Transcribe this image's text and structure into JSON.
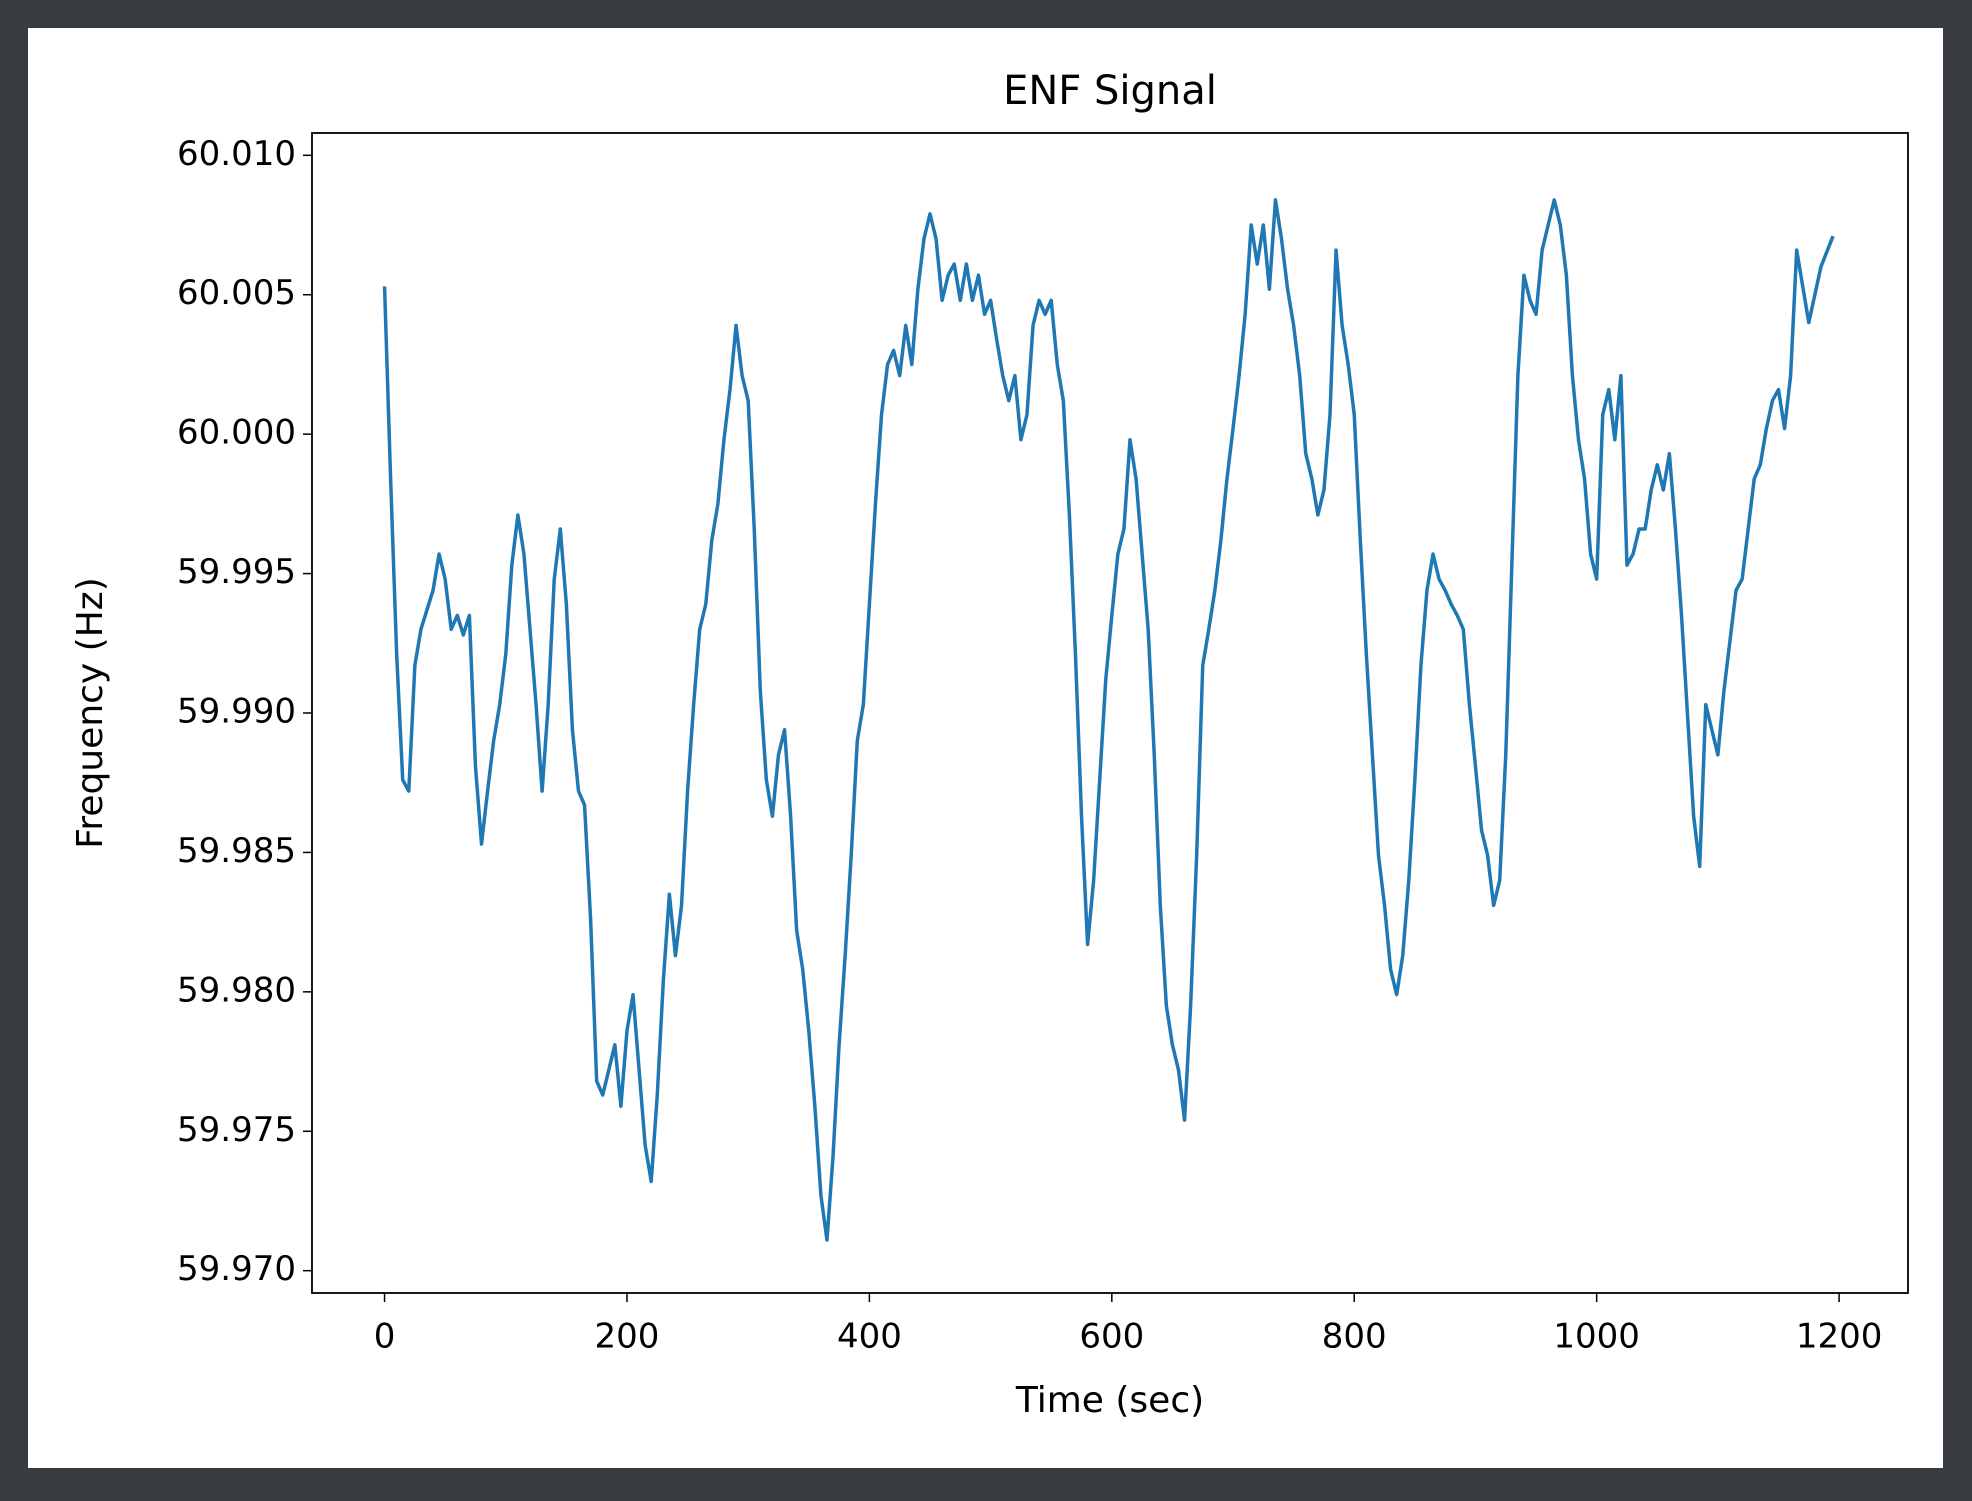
{
  "chart_data": {
    "type": "line",
    "title": "ENF Signal",
    "x_label": "Time (sec)",
    "y_label": "Frequency (Hz)",
    "x": [
      0,
      5,
      10,
      15,
      20,
      25,
      30,
      35,
      40,
      45,
      50,
      55,
      60,
      65,
      70,
      75,
      80,
      85,
      90,
      95,
      100,
      105,
      110,
      115,
      120,
      125,
      130,
      135,
      140,
      145,
      150,
      155,
      160,
      165,
      170,
      175,
      180,
      185,
      190,
      195,
      200,
      205,
      210,
      215,
      220,
      225,
      230,
      235,
      240,
      245,
      250,
      255,
      260,
      265,
      270,
      275,
      280,
      285,
      290,
      295,
      300,
      305,
      310,
      315,
      320,
      325,
      330,
      335,
      340,
      345,
      350,
      355,
      360,
      365,
      370,
      375,
      380,
      385,
      390,
      395,
      400,
      405,
      410,
      415,
      420,
      425,
      430,
      435,
      440,
      445,
      450,
      455,
      460,
      465,
      470,
      475,
      480,
      485,
      490,
      495,
      500,
      505,
      510,
      515,
      520,
      525,
      530,
      535,
      540,
      545,
      550,
      555,
      560,
      565,
      570,
      575,
      580,
      585,
      590,
      595,
      600,
      605,
      610,
      615,
      620,
      625,
      630,
      635,
      640,
      645,
      650,
      655,
      660,
      665,
      670,
      675,
      680,
      685,
      690,
      695,
      700,
      705,
      710,
      715,
      720,
      725,
      730,
      735,
      740,
      745,
      750,
      755,
      760,
      765,
      770,
      775,
      780,
      785,
      790,
      795,
      800,
      805,
      810,
      815,
      820,
      825,
      830,
      835,
      840,
      845,
      850,
      855,
      860,
      865,
      870,
      875,
      880,
      885,
      890,
      895,
      900,
      905,
      910,
      915,
      920,
      925,
      930,
      935,
      940,
      945,
      950,
      955,
      960,
      965,
      970,
      975,
      980,
      985,
      990,
      995,
      1000,
      1005,
      1010,
      1015,
      1020,
      1025,
      1030,
      1035,
      1040,
      1045,
      1050,
      1055,
      1060,
      1065,
      1070,
      1075,
      1080,
      1085,
      1090,
      1095,
      1100,
      1105,
      1110,
      1115,
      1120,
      1125,
      1130,
      1135,
      1140,
      1145,
      1150,
      1155,
      1160,
      1165,
      1175,
      1185,
      1195
    ],
    "series": [
      {
        "name": "ENF",
        "color": "#1f77b4",
        "values": [
          60.0053,
          59.9984,
          59.9921,
          59.9876,
          59.9872,
          59.9917,
          59.993,
          59.9937,
          59.9944,
          59.9957,
          59.9948,
          59.993,
          59.9935,
          59.9928,
          59.9935,
          59.9881,
          59.9853,
          59.9872,
          59.989,
          59.9903,
          59.9921,
          59.9953,
          59.9971,
          59.9957,
          59.993,
          59.9903,
          59.9872,
          59.9903,
          59.9948,
          59.9966,
          59.9939,
          59.9894,
          59.9872,
          59.9867,
          59.9826,
          59.9768,
          59.9763,
          59.9772,
          59.9781,
          59.9759,
          59.9786,
          59.9799,
          59.9772,
          59.9745,
          59.9732,
          59.9763,
          59.9804,
          59.9835,
          59.9813,
          59.9831,
          59.9872,
          59.9903,
          59.993,
          59.9939,
          59.9962,
          59.9975,
          59.9998,
          60.0016,
          60.0039,
          60.0021,
          60.0012,
          59.9966,
          59.9908,
          59.9876,
          59.9863,
          59.9885,
          59.9894,
          59.9863,
          59.9822,
          59.9808,
          59.9786,
          59.9759,
          59.9727,
          59.9711,
          59.9741,
          59.9781,
          59.9813,
          59.9849,
          59.989,
          59.9903,
          59.9939,
          59.9975,
          60.0007,
          60.0025,
          60.003,
          60.0021,
          60.0039,
          60.0025,
          60.0052,
          60.007,
          60.0079,
          60.007,
          60.0048,
          60.0057,
          60.0061,
          60.0048,
          60.0061,
          60.0048,
          60.0057,
          60.0043,
          60.0048,
          60.0034,
          60.0021,
          60.0012,
          60.0021,
          59.9998,
          60.0007,
          60.0039,
          60.0048,
          60.0043,
          60.0048,
          60.0025,
          60.0012,
          59.9971,
          59.9921,
          59.9863,
          59.9817,
          59.984,
          59.9876,
          59.9912,
          59.9935,
          59.9957,
          59.9966,
          59.9998,
          59.9984,
          59.9957,
          59.993,
          59.9885,
          59.9831,
          59.9795,
          59.9781,
          59.9772,
          59.9754,
          59.9795,
          59.9849,
          59.9917,
          59.993,
          59.9944,
          59.9962,
          59.9984,
          60.0002,
          60.0021,
          60.0043,
          60.0075,
          60.0061,
          60.0075,
          60.0052,
          60.0084,
          60.007,
          60.0052,
          60.0039,
          60.0021,
          59.9993,
          59.9984,
          59.9971,
          59.998,
          60.0007,
          60.0066,
          60.0039,
          60.0025,
          60.0007,
          59.9962,
          59.9921,
          59.9885,
          59.9849,
          59.9831,
          59.9808,
          59.9799,
          59.9813,
          59.984,
          59.9876,
          59.9917,
          59.9944,
          59.9957,
          59.9948,
          59.9944,
          59.9939,
          59.9935,
          59.993,
          59.9903,
          59.9881,
          59.9858,
          59.9849,
          59.9831,
          59.984,
          59.9885,
          59.9953,
          60.0021,
          60.0057,
          60.0048,
          60.0043,
          60.0066,
          60.0075,
          60.0084,
          60.0075,
          60.0057,
          60.0021,
          59.9998,
          59.9984,
          59.9957,
          59.9948,
          60.0007,
          60.0016,
          59.9998,
          60.0021,
          59.9953,
          59.9957,
          59.9966,
          59.9966,
          59.998,
          59.9989,
          59.998,
          59.9993,
          59.9966,
          59.9935,
          59.9899,
          59.9863,
          59.9845,
          59.9903,
          59.9894,
          59.9885,
          59.9908,
          59.9926,
          59.9944,
          59.9948,
          59.9966,
          59.9984,
          59.9989,
          60.0002,
          60.0012,
          60.0016,
          60.0002,
          60.0021,
          60.0066,
          60.004,
          60.006,
          60.0071
        ]
      }
    ],
    "xlim": [
      -59.85,
      1256.85
    ],
    "xticks": [
      0,
      200,
      400,
      600,
      800,
      1000,
      1200
    ],
    "ylim": [
      59.9692,
      60.0108
    ],
    "yticks": [
      {
        "value": 59.97,
        "label": "59.970"
      },
      59.975,
      {
        "value": 59.98,
        "label": "59.980"
      },
      59.985,
      {
        "value": 59.99,
        "label": "59.990"
      },
      59.995,
      {
        "value": 60.0,
        "label": "60.000"
      },
      {
        "value": 60.005,
        "label": "60.005"
      },
      {
        "value": 60.01,
        "label": "60.010"
      }
    ],
    "grid": false
  }
}
